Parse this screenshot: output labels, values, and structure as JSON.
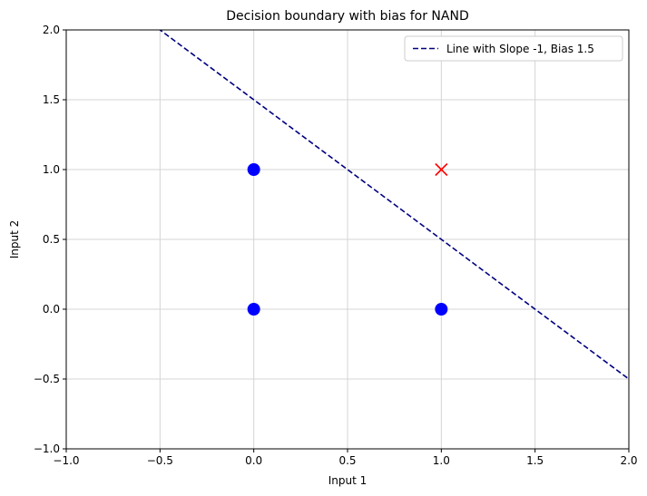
{
  "chart_data": {
    "type": "scatter",
    "title": "Decision boundary with bias for NAND",
    "xlabel": "Input 1",
    "ylabel": "Input 2",
    "xlim": [
      -1.0,
      2.0
    ],
    "ylim": [
      -1.0,
      2.0
    ],
    "x_ticks": [
      -1.0,
      -0.5,
      0.0,
      0.5,
      1.0,
      1.5,
      2.0
    ],
    "y_ticks": [
      -1.0,
      -0.5,
      0.0,
      0.5,
      1.0,
      1.5,
      2.0
    ],
    "x_tick_labels": [
      "−1.0",
      "−0.5",
      "0.0",
      "0.5",
      "1.0",
      "1.5",
      "2.0"
    ],
    "y_tick_labels": [
      "−1.0",
      "−0.5",
      "0.0",
      "0.5",
      "1.0",
      "1.5",
      "2.0"
    ],
    "grid": true,
    "legend_position": "top-right",
    "points": [
      {
        "x": 0,
        "y": 0,
        "marker": "circle",
        "color": "#0000ff"
      },
      {
        "x": 0,
        "y": 1,
        "marker": "circle",
        "color": "#0000ff"
      },
      {
        "x": 1,
        "y": 0,
        "marker": "circle",
        "color": "#0000ff"
      },
      {
        "x": 1,
        "y": 1,
        "marker": "x",
        "color": "#ff0000"
      }
    ],
    "lines": [
      {
        "name": "Line with Slope -1, Bias 1.5",
        "slope": -1,
        "intercept": 1.5,
        "style": "dashed",
        "color": "#000080"
      }
    ]
  }
}
